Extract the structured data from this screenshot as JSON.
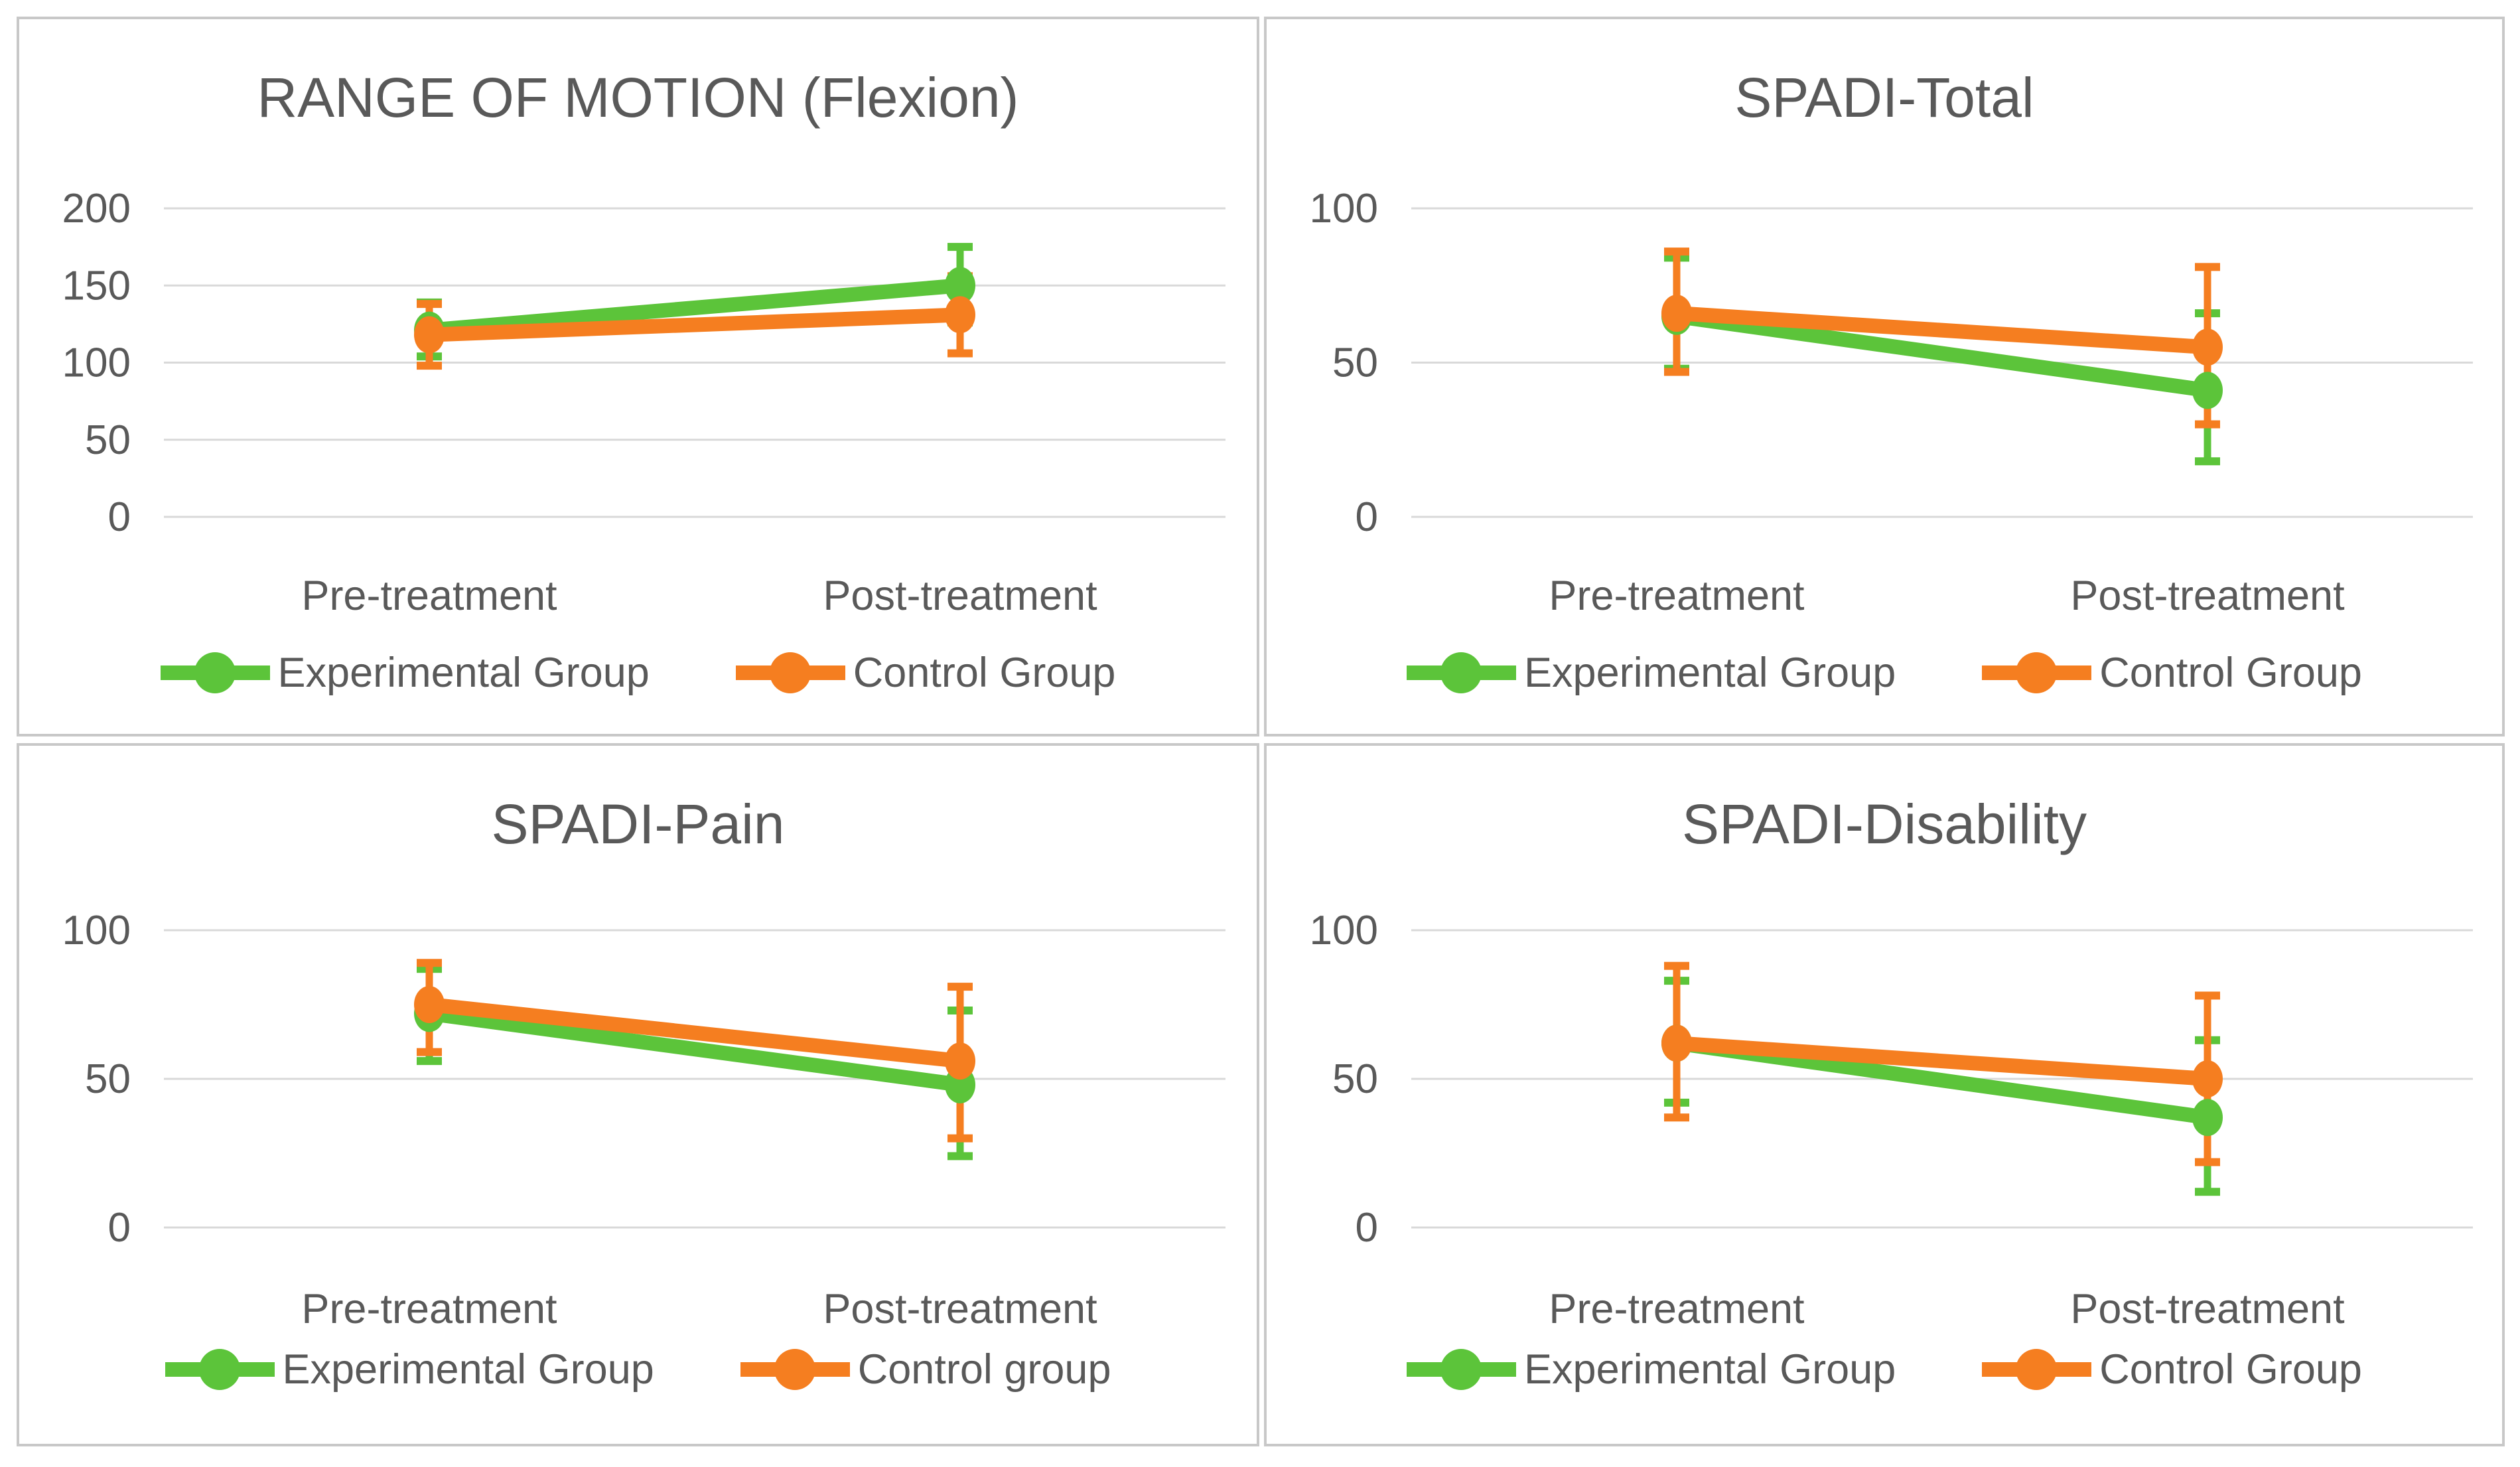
{
  "style": {
    "experimental_color": "#5cc43a",
    "control_color": "#f57e20",
    "text_color": "#595959",
    "gridline_color": "#d9d9d9",
    "panel_border_color": "#c8c8c8",
    "background_color": "#ffffff"
  },
  "chart_data": [
    {
      "type": "line",
      "title": "RANGE OF MOTION (Flexion)",
      "categories": [
        "Pre-treatment",
        "Post-treatment"
      ],
      "xlabel": "",
      "ylabel": "",
      "ylim": [
        0,
        200
      ],
      "yticks": [
        0,
        50,
        100,
        150,
        200
      ],
      "grid": true,
      "legend_position": "bottom",
      "error_bars": true,
      "series": [
        {
          "name": "Experimental Group",
          "color": "#5cc43a",
          "values": [
            121,
            150
          ],
          "error_low": [
            104,
            126
          ],
          "error_high": [
            139,
            175
          ]
        },
        {
          "name": "Control Group",
          "color": "#f57e20",
          "values": [
            118,
            131
          ],
          "error_low": [
            98,
            106
          ],
          "error_high": [
            138,
            156
          ]
        }
      ]
    },
    {
      "type": "line",
      "title": "SPADI-Total",
      "categories": [
        "Pre-treatment",
        "Post-treatment"
      ],
      "xlabel": "",
      "ylabel": "",
      "ylim": [
        0,
        100
      ],
      "yticks": [
        0,
        50,
        100
      ],
      "grid": true,
      "legend_position": "bottom",
      "error_bars": true,
      "series": [
        {
          "name": "Experimental Group",
          "color": "#5cc43a",
          "values": [
            65,
            41
          ],
          "error_low": [
            48,
            18
          ],
          "error_high": [
            84,
            66
          ]
        },
        {
          "name": "Control Group",
          "color": "#f57e20",
          "values": [
            66,
            55
          ],
          "error_low": [
            47,
            30
          ],
          "error_high": [
            86,
            81
          ]
        }
      ]
    },
    {
      "type": "line",
      "title": "SPADI-Pain",
      "categories": [
        "Pre-treatment",
        "Post-treatment"
      ],
      "xlabel": "",
      "ylabel": "",
      "ylim": [
        0,
        100
      ],
      "yticks": [
        0,
        50,
        100
      ],
      "grid": true,
      "legend_position": "bottom",
      "error_bars": true,
      "series": [
        {
          "name": "Experimental Group",
          "color": "#5cc43a",
          "values": [
            72,
            48
          ],
          "error_low": [
            56,
            24
          ],
          "error_high": [
            87,
            73
          ]
        },
        {
          "name": "Control group",
          "color": "#f57e20",
          "values": [
            75,
            56
          ],
          "error_low": [
            59,
            30
          ],
          "error_high": [
            89,
            81
          ]
        }
      ]
    },
    {
      "type": "line",
      "title": "SPADI-Disability",
      "categories": [
        "Pre-treatment",
        "Post-treatment"
      ],
      "xlabel": "",
      "ylabel": "",
      "ylim": [
        0,
        100
      ],
      "yticks": [
        0,
        50,
        100
      ],
      "grid": true,
      "legend_position": "bottom",
      "error_bars": true,
      "series": [
        {
          "name": "Experimental Group",
          "color": "#5cc43a",
          "values": [
            62,
            37
          ],
          "error_low": [
            42,
            12
          ],
          "error_high": [
            83,
            63
          ]
        },
        {
          "name": "Control Group",
          "color": "#f57e20",
          "values": [
            62,
            50
          ],
          "error_low": [
            37,
            22
          ],
          "error_high": [
            88,
            78
          ]
        }
      ]
    }
  ]
}
